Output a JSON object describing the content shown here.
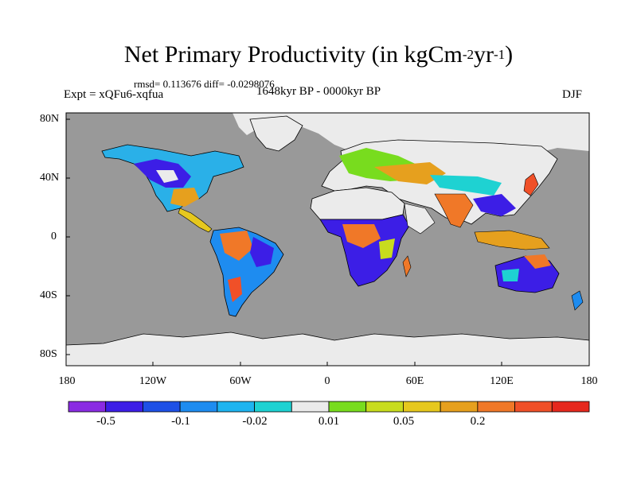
{
  "title": {
    "main": "Net Primary Productivity (in kgCm",
    "exp1": "-2",
    "mid": "yr",
    "exp2": "-1",
    "close": ")"
  },
  "subtitle": {
    "stats": "rmsd= 0.113676 diff= -0.0298076",
    "experiment": "Expt = xQFu6-xqfua",
    "period": "1648kyr BP - 0000kyr BP",
    "season": "DJF"
  },
  "axes": {
    "lat_labels": [
      "80N",
      "40N",
      "0",
      "40S",
      "80S"
    ],
    "lon_labels": [
      "180",
      "120W",
      "60W",
      "0",
      "60E",
      "120E",
      "180"
    ]
  },
  "colorbar": {
    "colors": [
      "#8a2be2",
      "#3c1ee6",
      "#1e50e6",
      "#1e8cf0",
      "#1eb4f0",
      "#1ed2d2",
      "#ebebeb",
      "#78dc1e",
      "#c8dc1e",
      "#e6c81e",
      "#e6a01e",
      "#f07828",
      "#f05028",
      "#e6281e"
    ],
    "labels": [
      "-0.5",
      "-0.1",
      "-0.02",
      "0.01",
      "0.05",
      "0.2"
    ]
  },
  "map": {
    "ocean_color": "#999999",
    "ice_color": "#ebebeb"
  }
}
